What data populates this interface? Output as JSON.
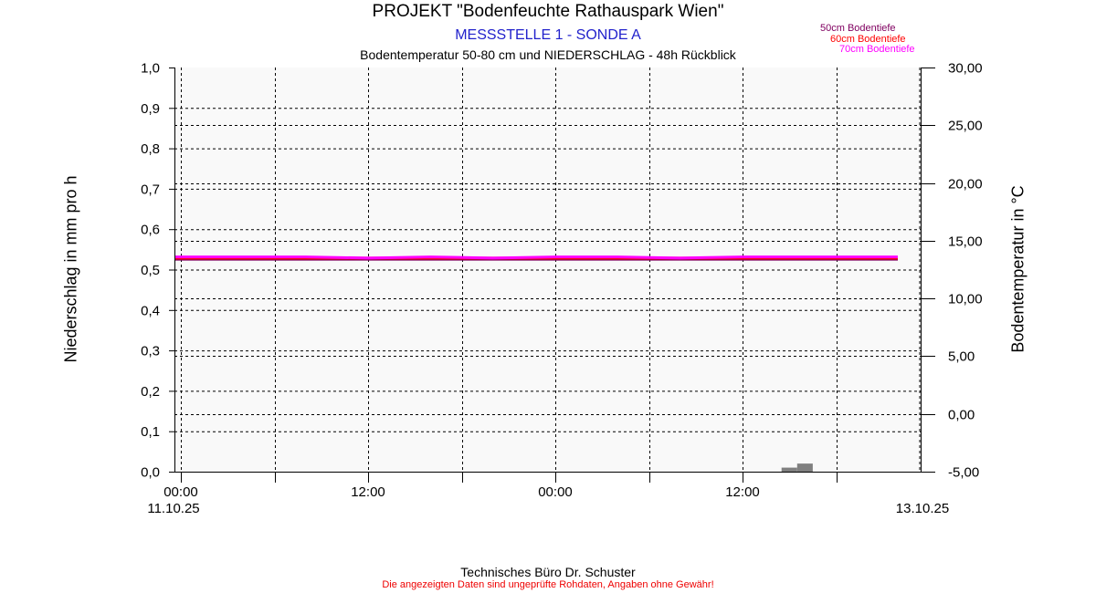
{
  "header": {
    "title": "PROJEKT \"Bodenfeuchte Rathauspark Wien\"",
    "subtitle": "MESSSTELLE 1 - SONDE A",
    "subtitle2": "Bodentemperatur 50-80 cm und NIEDERSCHLAG - 48h Rückblick"
  },
  "footer": {
    "line1": "Technisches Büro Dr. Schuster",
    "line2": "Die angezeigten Daten sind ungeprüfte Rohdaten, Angaben ohne Gewähr!"
  },
  "chart_data": {
    "type": "line",
    "title": "PROJEKT \"Bodenfeuchte Rathauspark Wien\"",
    "ylabel_left": "Niederschlag in mm pro h",
    "ylabel_right": "Bodentemperatur in °C",
    "ylim_left": [
      0,
      1
    ],
    "ylim_right": [
      -5,
      30
    ],
    "yticks_left": [
      "0,0",
      "0,1",
      "0,2",
      "0,3",
      "0,4",
      "0,5",
      "0,6",
      "0,7",
      "0,8",
      "0,9",
      "1,0"
    ],
    "yticks_right": [
      "-5,00",
      "0,00",
      "5,00",
      "10,00",
      "15,00",
      "20,00",
      "25,00",
      "30,00"
    ],
    "xticks": [
      {
        "time": "2025-10-11 00:00",
        "label": "00:00",
        "date": "11.10.25"
      },
      {
        "time": "2025-10-11 12:00",
        "label": "12:00",
        "date": ""
      },
      {
        "time": "2025-10-12 00:00",
        "label": "00:00",
        "date": ""
      },
      {
        "time": "2025-10-12 12:00",
        "label": "12:00",
        "date": ""
      },
      {
        "time": "2025-10-13 00:00",
        "label": "",
        "date": "13.10.25"
      }
    ],
    "grid": true,
    "legend_position": "top-right",
    "x": [
      "2025-10-11 00:00",
      "2025-10-11 04:00",
      "2025-10-11 08:00",
      "2025-10-11 12:00",
      "2025-10-11 16:00",
      "2025-10-11 20:00",
      "2025-10-12 00:00",
      "2025-10-12 04:00",
      "2025-10-12 08:00",
      "2025-10-12 12:00",
      "2025-10-12 16:00",
      "2025-10-12 20:00",
      "2025-10-12 22:00"
    ],
    "series": [
      {
        "name": "50cm Bodentiefe",
        "color": "#800060",
        "axis": "right",
        "values": [
          13.4,
          13.4,
          13.4,
          13.4,
          13.4,
          13.4,
          13.4,
          13.4,
          13.4,
          13.4,
          13.4,
          13.4,
          13.4
        ]
      },
      {
        "name": "60cm Bodentiefe",
        "color": "#ff0000",
        "axis": "right",
        "values": [
          13.5,
          13.5,
          13.5,
          13.5,
          13.5,
          13.5,
          13.5,
          13.5,
          13.5,
          13.5,
          13.5,
          13.5,
          13.5
        ]
      },
      {
        "name": "70cm Bodentiefe",
        "color": "#ff00ff",
        "axis": "right",
        "values": [
          13.6,
          13.6,
          13.6,
          13.5,
          13.6,
          13.5,
          13.6,
          13.6,
          13.5,
          13.6,
          13.6,
          13.6,
          13.6
        ]
      }
    ],
    "precipitation": {
      "color": "#808080",
      "axis": "left",
      "bars": [
        {
          "time": "2025-10-12 15:00",
          "value": 0.01
        },
        {
          "time": "2025-10-12 16:00",
          "value": 0.02
        }
      ]
    }
  }
}
